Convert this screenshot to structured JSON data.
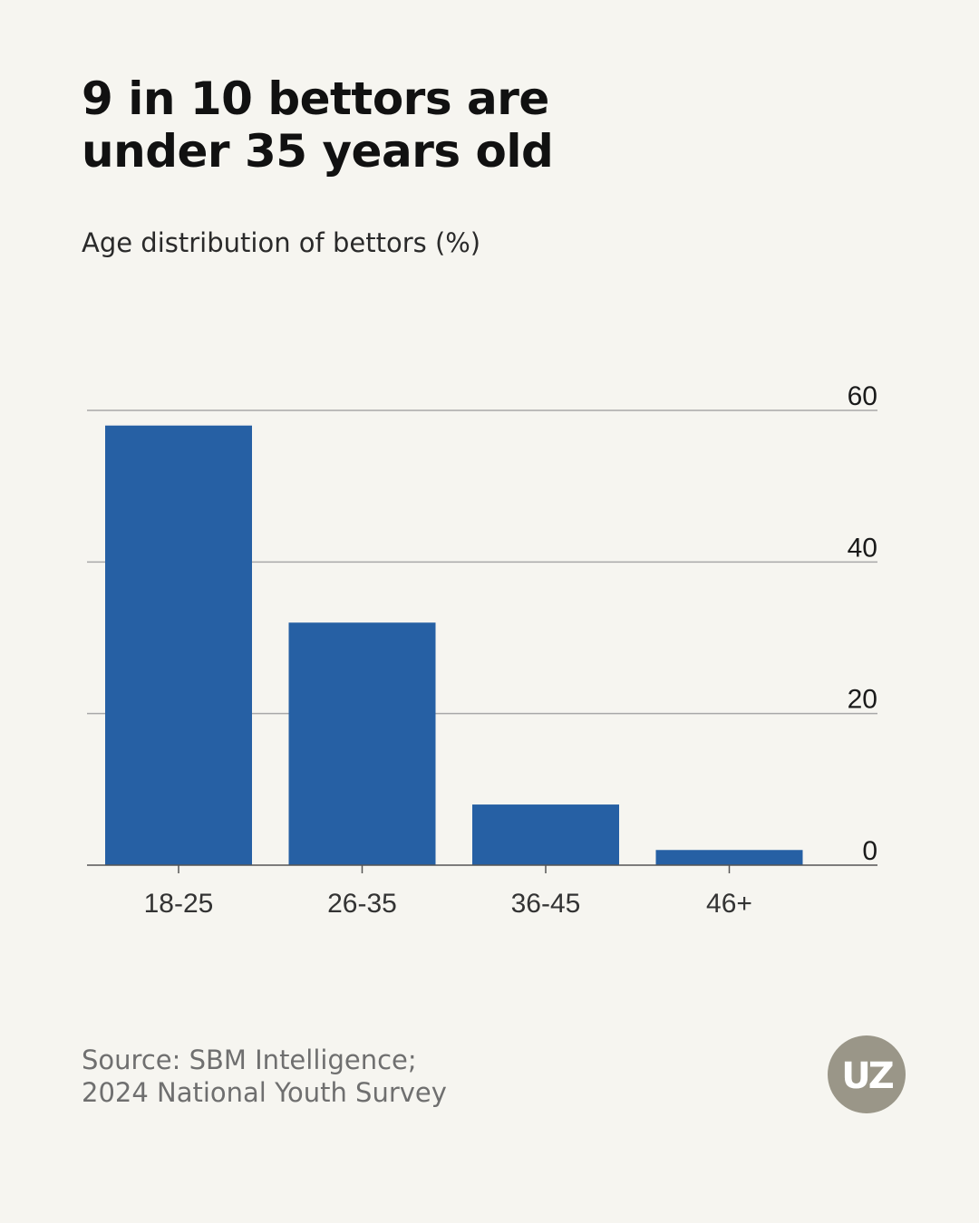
{
  "header": {
    "title_line1": "9 in 10 bettors are",
    "title_line2": "under 35 years old",
    "subtitle": "Age distribution of bettors (%)"
  },
  "footer": {
    "source_line1": "Source: SBM Intelligence;",
    "source_line2": "2024 National Youth Survey",
    "logo_text": "UZ"
  },
  "colors": {
    "background": "#f6f5f0",
    "bar": "#2660a4",
    "grid": "#a8a8a8",
    "axis": "#555555",
    "logo": "#9a9688"
  },
  "chart_data": {
    "type": "bar",
    "categories": [
      "18-25",
      "26-35",
      "36-45",
      "46+"
    ],
    "values": [
      58,
      32,
      8,
      2
    ],
    "title": "9 in 10 bettors are under 35 years old",
    "subtitle": "Age distribution of bettors (%)",
    "xlabel": "",
    "ylabel": "",
    "ylim": [
      0,
      60
    ],
    "yticks": [
      0,
      20,
      40,
      60
    ],
    "y_axis_side": "right",
    "grid": true,
    "legend": "none"
  }
}
